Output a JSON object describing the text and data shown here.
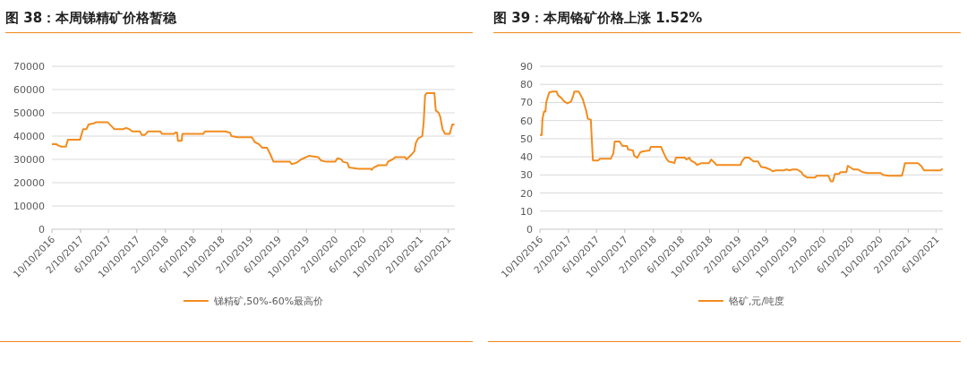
{
  "chart_data": [
    {
      "type": "line",
      "title": "图 38：本周锑精矿价格暂稳",
      "grid": "y",
      "legend": "bottom",
      "x": [
        "2016-10-10",
        "2016-10-30",
        "2016-11-06",
        "2016-11-19",
        "2016-12-09",
        "2016-12-18",
        "2017-02-08",
        "2017-02-21",
        "2017-03-07",
        "2017-03-17",
        "2017-04-07",
        "2017-04-20",
        "2017-06-06",
        "2017-06-26",
        "2017-07-05",
        "2017-08-12",
        "2017-08-25",
        "2017-09-08",
        "2017-09-21",
        "2017-10-24",
        "2017-10-31",
        "2017-11-14",
        "2017-11-27",
        "2018-01-20",
        "2018-01-26",
        "2018-03-19",
        "2018-03-25",
        "2018-04-01",
        "2018-04-05",
        "2018-04-21",
        "2018-04-24",
        "2018-07-23",
        "2018-07-30",
        "2018-10-25",
        "2018-11-15",
        "2018-11-21",
        "2018-12-18",
        "2019-02-17",
        "2019-03-01",
        "2019-03-20",
        "2019-04-03",
        "2019-04-23",
        "2019-05-06",
        "2019-05-21",
        "2019-07-31",
        "2019-08-07",
        "2019-08-27",
        "2019-09-17",
        "2019-10-20",
        "2019-11-29",
        "2019-12-12",
        "2020-01-02",
        "2020-02-11",
        "2020-02-20",
        "2020-03-08",
        "2020-03-14",
        "2020-04-03",
        "2020-04-10",
        "2020-05-20",
        "2020-07-12",
        "2020-07-16",
        "2020-07-25",
        "2020-08-15",
        "2020-09-18",
        "2020-09-24",
        "2020-10-14",
        "2020-10-27",
        "2020-12-07",
        "2020-12-13",
        "2021-01-03",
        "2021-01-16",
        "2021-01-22",
        "2021-02-01",
        "2021-02-19",
        "2021-02-25",
        "2021-03-03",
        "2021-03-10",
        "2021-04-12",
        "2021-04-18",
        "2021-05-01",
        "2021-05-08",
        "2021-05-17",
        "2021-05-28",
        "2021-06-17",
        "2021-06-28",
        "2021-07-07"
      ],
      "series": [
        {
          "name": "锑精矿,50%-60%最高价",
          "color": "#f28c1e",
          "values": [
            36500,
            36500,
            36000,
            35500,
            35500,
            38500,
            38500,
            43000,
            43000,
            45000,
            45500,
            46000,
            46000,
            44000,
            43000,
            43000,
            43500,
            43000,
            42000,
            42000,
            40500,
            40500,
            42000,
            42000,
            41000,
            41000,
            41500,
            41500,
            38000,
            38000,
            41000,
            41000,
            42000,
            42000,
            41500,
            40000,
            39500,
            39500,
            37500,
            36500,
            35000,
            35000,
            32500,
            29000,
            29000,
            28000,
            28500,
            30000,
            31500,
            31000,
            29500,
            29000,
            29000,
            30500,
            30000,
            29000,
            28500,
            26500,
            26000,
            26000,
            25500,
            26500,
            27500,
            27500,
            29000,
            30000,
            31000,
            31000,
            30000,
            32000,
            33500,
            37000,
            39000,
            40000,
            46000,
            57500,
            58500,
            58500,
            51000,
            50000,
            48000,
            43000,
            41000,
            41000,
            45000,
            45000
          ]
        }
      ],
      "xlim": [
        "2016-10-10",
        "2021-07-09"
      ],
      "xticks": [
        {
          "value": "2016-10-10",
          "label": "10/10/2016"
        },
        {
          "value": "2017-02-10",
          "label": "2/10/2017"
        },
        {
          "value": "2017-06-10",
          "label": "6/10/2017"
        },
        {
          "value": "2017-10-10",
          "label": "10/10/2017"
        },
        {
          "value": "2018-02-10",
          "label": "2/10/2018"
        },
        {
          "value": "2018-06-10",
          "label": "6/10/2018"
        },
        {
          "value": "2018-10-10",
          "label": "10/10/2018"
        },
        {
          "value": "2019-02-10",
          "label": "2/10/2019"
        },
        {
          "value": "2019-06-10",
          "label": "6/10/2019"
        },
        {
          "value": "2019-10-10",
          "label": "10/10/2019"
        },
        {
          "value": "2020-02-10",
          "label": "2/10/2020"
        },
        {
          "value": "2020-06-10",
          "label": "6/10/2020"
        },
        {
          "value": "2020-10-10",
          "label": "10/10/2020"
        },
        {
          "value": "2021-02-10",
          "label": "2/10/2021"
        },
        {
          "value": "2021-06-10",
          "label": "6/10/2021"
        }
      ],
      "ylim": [
        0,
        70000
      ],
      "yticks": [
        0,
        10000,
        20000,
        30000,
        40000,
        50000,
        60000,
        70000
      ]
    },
    {
      "type": "line",
      "title": "图 39：本周铬矿价格上涨 1.52%",
      "grid": "y",
      "legend": "bottom",
      "x": [
        "2016-10-10",
        "2016-10-18",
        "2016-10-21",
        "2016-10-28",
        "2016-11-03",
        "2016-11-06",
        "2016-11-13",
        "2016-11-19",
        "2016-12-02",
        "2016-12-21",
        "2016-12-27",
        "2017-01-10",
        "2017-01-23",
        "2017-02-05",
        "2017-02-21",
        "2017-03-03",
        "2017-03-07",
        "2017-03-26",
        "2017-04-12",
        "2017-04-21",
        "2017-04-28",
        "2017-05-04",
        "2017-05-17",
        "2017-05-21",
        "2017-05-26",
        "2017-06-18",
        "2017-06-25",
        "2017-08-11",
        "2017-08-22",
        "2017-08-28",
        "2017-09-17",
        "2017-09-30",
        "2017-10-19",
        "2017-10-25",
        "2017-11-14",
        "2017-11-20",
        "2017-12-03",
        "2017-12-16",
        "2017-12-28",
        "2018-01-24",
        "2018-01-30",
        "2018-03-15",
        "2018-03-27",
        "2018-04-07",
        "2018-04-16",
        "2018-05-02",
        "2018-05-11",
        "2018-05-18",
        "2018-06-26",
        "2018-07-02",
        "2018-07-15",
        "2018-07-21",
        "2018-08-10",
        "2018-08-16",
        "2018-09-05",
        "2018-10-07",
        "2018-10-17",
        "2018-11-02",
        "2018-11-08",
        "2019-02-20",
        "2019-02-26",
        "2019-03-10",
        "2019-03-28",
        "2019-04-17",
        "2019-05-06",
        "2019-05-19",
        "2019-06-08",
        "2019-06-27",
        "2019-07-09",
        "2019-07-22",
        "2019-08-24",
        "2019-09-06",
        "2019-09-19",
        "2019-10-02",
        "2019-10-21",
        "2019-11-09",
        "2019-11-16",
        "2019-12-05",
        "2020-01-06",
        "2020-01-13",
        "2020-03-04",
        "2020-03-14",
        "2020-03-23",
        "2020-04-01",
        "2020-04-18",
        "2020-04-24",
        "2020-05-20",
        "2020-05-26",
        "2020-06-08",
        "2020-06-21",
        "2020-07-10",
        "2020-07-30",
        "2020-08-18",
        "2020-10-15",
        "2020-10-24",
        "2020-11-17",
        "2021-01-14",
        "2021-01-20",
        "2021-01-27",
        "2021-03-24",
        "2021-04-07",
        "2021-04-19",
        "2021-06-29",
        "2021-07-08"
      ],
      "series": [
        {
          "name": "铬矿,元/吨度",
          "color": "#f28c1e",
          "values": [
            52,
            52,
            61,
            65,
            65,
            70,
            73,
            75.5,
            76,
            76,
            74,
            72.5,
            70.5,
            69.5,
            70.5,
            74,
            76,
            76,
            72,
            68,
            65,
            61,
            60.5,
            50,
            38,
            38,
            39,
            39,
            42,
            48.5,
            48.5,
            46,
            46,
            44,
            43.5,
            40.5,
            39.5,
            42.5,
            43,
            43.5,
            45.5,
            45.5,
            42,
            39,
            37.5,
            37,
            36.5,
            39.5,
            39.5,
            38.5,
            39.5,
            38,
            36.5,
            35.5,
            36.5,
            36.5,
            38.5,
            36.5,
            35.5,
            35.5,
            37.5,
            39.5,
            39.5,
            37.5,
            37.5,
            34.5,
            34,
            33,
            32,
            32.5,
            32.5,
            33,
            32.5,
            33,
            33,
            31.5,
            30,
            28.5,
            28.5,
            29.5,
            29.5,
            26.5,
            26.5,
            30.5,
            30.5,
            31.5,
            31.5,
            35,
            34,
            33,
            33,
            31.5,
            31,
            31,
            30,
            29.5,
            29.5,
            32.5,
            36.5,
            36.5,
            35,
            32.5,
            32.5,
            33.5
          ]
        }
      ],
      "xlim": [
        "2016-10-10",
        "2021-07-09"
      ],
      "xticks": [
        {
          "value": "2016-10-10",
          "label": "10/10/2016"
        },
        {
          "value": "2017-02-10",
          "label": "2/10/2017"
        },
        {
          "value": "2017-06-10",
          "label": "6/10/2017"
        },
        {
          "value": "2017-10-10",
          "label": "10/10/2017"
        },
        {
          "value": "2018-02-10",
          "label": "2/10/2018"
        },
        {
          "value": "2018-06-10",
          "label": "6/10/2018"
        },
        {
          "value": "2018-10-10",
          "label": "10/10/2018"
        },
        {
          "value": "2019-02-10",
          "label": "2/10/2019"
        },
        {
          "value": "2019-06-10",
          "label": "6/10/2019"
        },
        {
          "value": "2019-10-10",
          "label": "10/10/2019"
        },
        {
          "value": "2020-02-10",
          "label": "2/10/2020"
        },
        {
          "value": "2020-06-10",
          "label": "6/10/2020"
        },
        {
          "value": "2020-10-10",
          "label": "10/10/2020"
        },
        {
          "value": "2021-02-10",
          "label": "2/10/2021"
        },
        {
          "value": "2021-06-10",
          "label": "6/10/2021"
        }
      ],
      "ylim": [
        0,
        90
      ],
      "yticks": [
        0,
        10,
        20,
        30,
        40,
        50,
        60,
        70,
        80,
        90
      ]
    }
  ]
}
